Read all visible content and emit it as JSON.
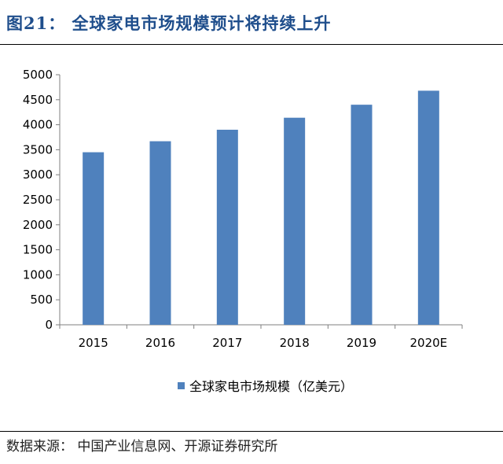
{
  "figure": {
    "title": "图21：  全球家电市场规模预计将持续上升",
    "source": "数据来源：  中国产业信息网、开源证券研究所"
  },
  "colors": {
    "bar": "#4f81bd",
    "title": "#1f4e8c"
  },
  "chart_data": {
    "type": "bar",
    "title": "",
    "xlabel": "",
    "ylabel": "",
    "categories": [
      "2015",
      "2016",
      "2017",
      "2018",
      "2019",
      "2020E"
    ],
    "series": [
      {
        "name": "全球家电市场规模（亿美元）",
        "values": [
          3450,
          3670,
          3900,
          4140,
          4400,
          4680
        ]
      }
    ],
    "ylim": [
      0,
      5000
    ],
    "yticks": [
      0,
      500,
      1000,
      1500,
      2000,
      2500,
      3000,
      3500,
      4000,
      4500,
      5000
    ],
    "grid": false,
    "legend": "bottom"
  }
}
